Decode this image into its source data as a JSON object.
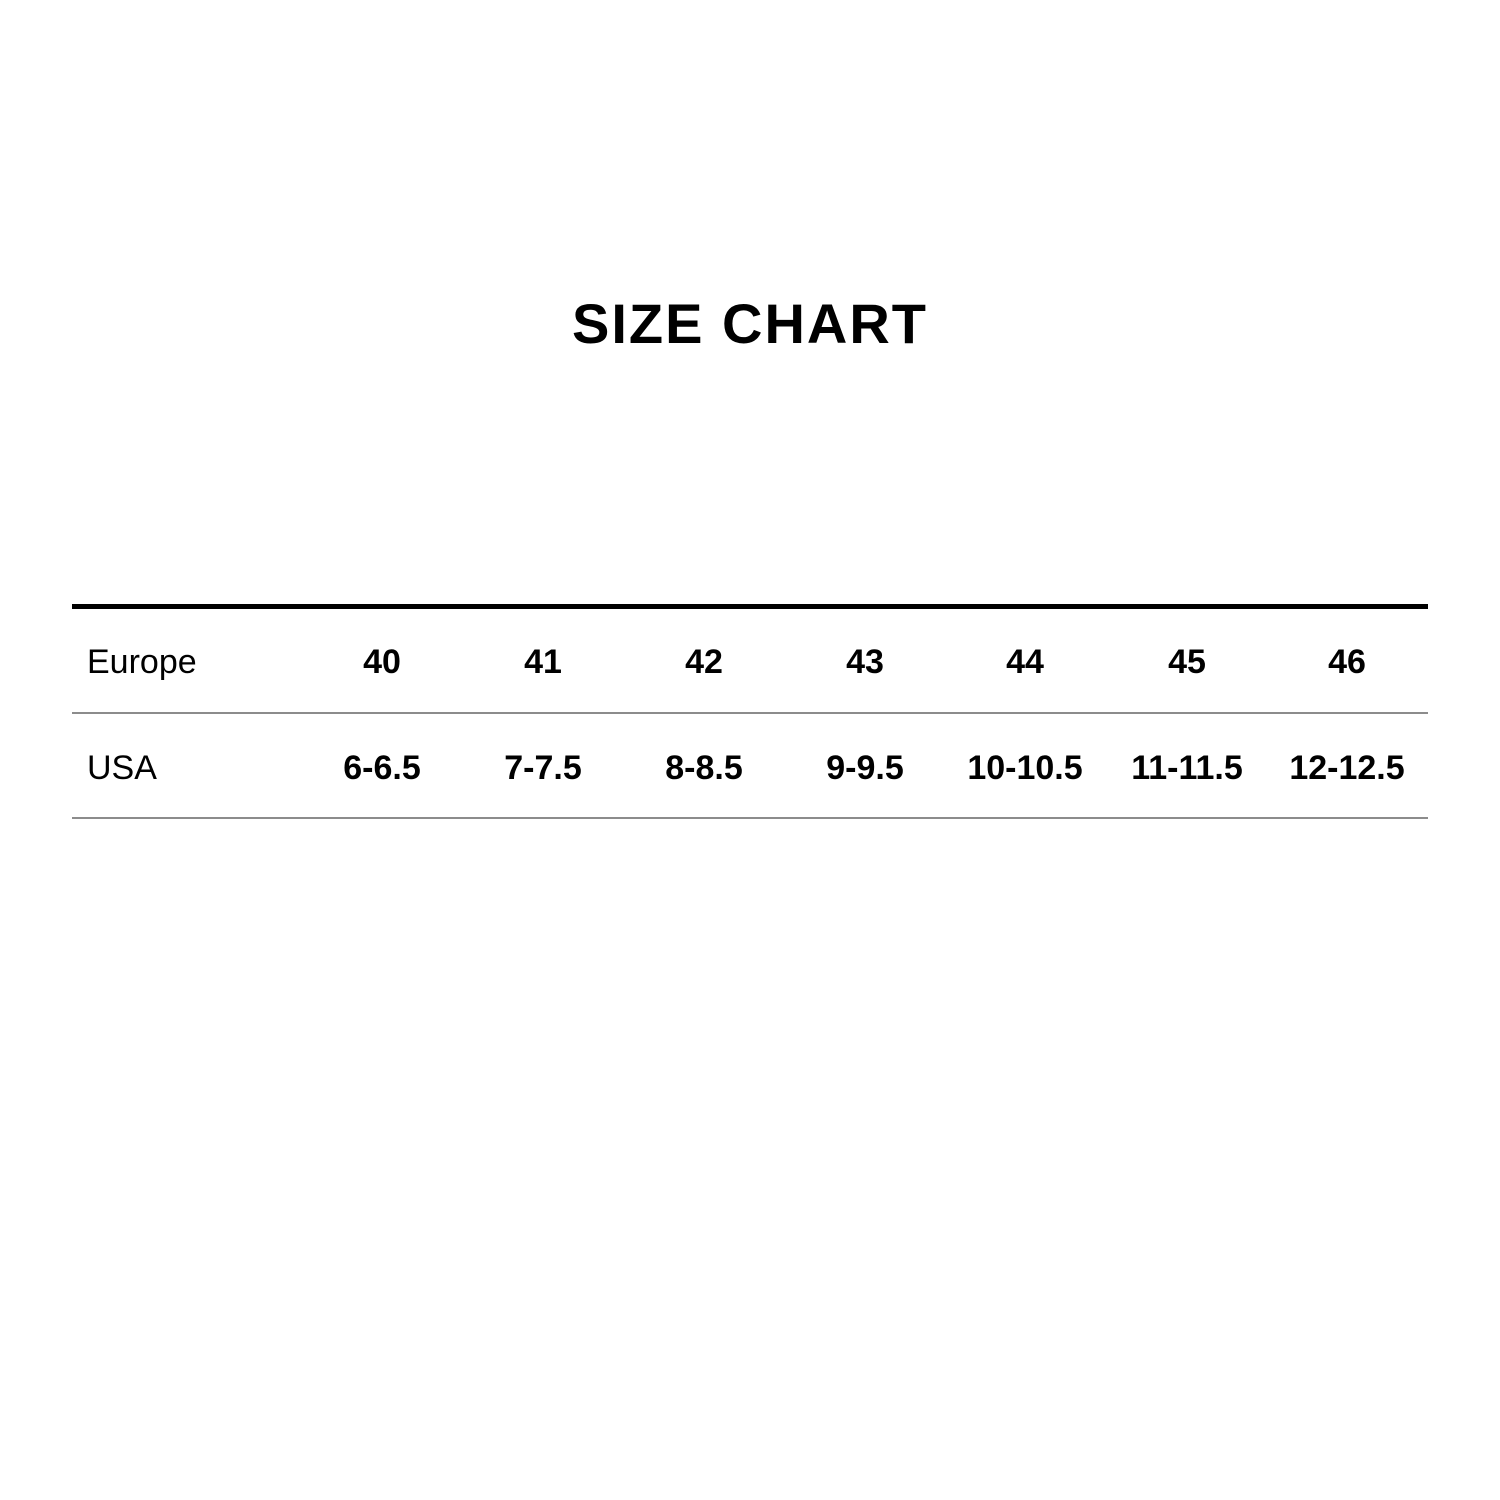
{
  "title": "SIZE CHART",
  "rows": [
    {
      "label": "Europe",
      "values": [
        "40",
        "41",
        "42",
        "43",
        "44",
        "45",
        "46"
      ]
    },
    {
      "label": "USA",
      "values": [
        "6-6.5",
        "7-7.5",
        "8-8.5",
        "9-9.5",
        "10-10.5",
        "11-11.5",
        "12-12.5"
      ]
    }
  ]
}
